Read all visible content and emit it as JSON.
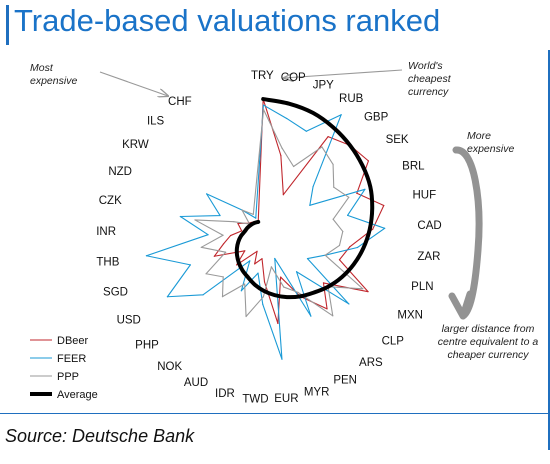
{
  "header": {
    "title": "Trade-based valuations ranked"
  },
  "annotations": {
    "most_expensive": [
      "Most",
      "expensive"
    ],
    "cheapest": [
      "World's",
      "cheapest",
      "currency"
    ],
    "more_expensive": [
      "More",
      "expensive"
    ],
    "distance_note": [
      "larger distance  from",
      "centre equivalent to a",
      "cheaper currency"
    ]
  },
  "source": "Source: Deutsche Bank",
  "colors": {
    "dbeer": "#c0272d",
    "feer": "#1a9ad6",
    "ppp": "#9a9a9a",
    "average": "#000000",
    "title": "#1a73c8",
    "big_arrow": "#808080"
  },
  "chart_data": {
    "type": "radar",
    "categories": [
      "TRY",
      "COP",
      "JPY",
      "RUB",
      "GBP",
      "SEK",
      "BRL",
      "HUF",
      "CAD",
      "ZAR",
      "PLN",
      "MXN",
      "CLP",
      "ARS",
      "PEN",
      "MYR",
      "EUR",
      "TWD",
      "IDR",
      "AUD",
      "NOK",
      "PHP",
      "USD",
      "SGD",
      "THB",
      "INR",
      "CZK",
      "NZD",
      "KRW",
      "ILS",
      "CHF"
    ],
    "rank_note": "Ordered from world's cheapest currency (TRY) to most expensive (CHF); larger distance from centre equivalent to a cheaper currency",
    "rlim": [
      0,
      1
    ],
    "series": [
      {
        "name": "DBeer",
        "values": [
          0.92,
          0.55,
          0.3,
          0.78,
          0.82,
          0.84,
          0.66,
          0.8,
          0.7,
          0.55,
          0.5,
          0.76,
          0.48,
          0.62,
          0.45,
          0.28,
          0.58,
          0.3,
          0.15,
          0.2,
          0.12,
          0.28,
          0.18,
          0.38,
          0.3,
          0.25,
          0.18,
          0.22,
          0.16,
          0.14,
          0.12
        ]
      },
      {
        "name": "FEER",
        "values": [
          0.88,
          0.8,
          0.75,
          0.95,
          0.45,
          0.35,
          0.72,
          0.55,
          0.78,
          0.6,
          0.4,
          0.3,
          0.7,
          0.3,
          0.6,
          0.15,
          0.82,
          0.45,
          0.25,
          0.4,
          0.2,
          0.58,
          0.78,
          0.55,
          0.82,
          0.4,
          0.6,
          0.35,
          0.5,
          0.25,
          0.15
        ]
      },
      {
        "name": "PPP",
        "values": [
          0.85,
          0.6,
          0.5,
          0.7,
          0.65,
          0.55,
          0.6,
          0.45,
          0.5,
          0.48,
          0.4,
          0.72,
          0.52,
          0.68,
          0.42,
          0.35,
          0.2,
          0.4,
          0.55,
          0.35,
          0.5,
          0.4,
          0.48,
          0.3,
          0.45,
          0.3,
          0.5,
          0.25,
          0.15,
          0.25,
          0.18
        ]
      },
      {
        "name": "Average",
        "values": [
          0.92,
          0.9,
          0.88,
          0.85,
          0.82,
          0.79,
          0.76,
          0.72,
          0.68,
          0.64,
          0.6,
          0.56,
          0.52,
          0.48,
          0.45,
          0.42,
          0.39,
          0.36,
          0.33,
          0.3,
          0.28,
          0.26,
          0.24,
          0.22,
          0.2,
          0.18,
          0.16,
          0.15,
          0.14,
          0.13,
          0.12
        ]
      }
    ],
    "legend": {
      "position": "bottom-left",
      "entries": [
        "DBeer",
        "FEER",
        "PPP",
        "Average"
      ]
    },
    "grid": false
  }
}
